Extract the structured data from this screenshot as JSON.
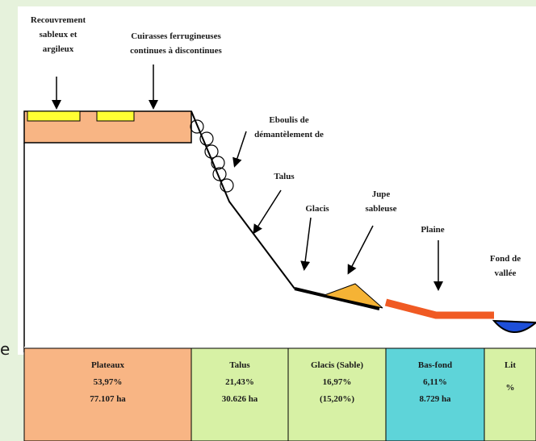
{
  "labels": [
    {
      "lines": [
        "Recouvrement",
        "sableux et",
        "argileux"
      ]
    },
    {
      "lines": [
        "Cuirasses ferrugineuses",
        "continues à discontinues"
      ]
    },
    {
      "lines": [
        "Eboulis de",
        "démantèlement de"
      ]
    },
    {
      "lines": [
        "Talus"
      ]
    },
    {
      "lines": [
        "Glacis"
      ]
    },
    {
      "lines": [
        "Jupe",
        "sableuse"
      ]
    },
    {
      "lines": [
        "Plaine"
      ]
    },
    {
      "lines": [
        "Fond de",
        "vallée"
      ]
    }
  ],
  "side_text": "e",
  "table": {
    "cells": [
      {
        "lines": [
          "Plateaux",
          "53,97%",
          "77.107 ha"
        ]
      },
      {
        "lines": [
          "Talus",
          "21,43%",
          "30.626 ha"
        ]
      },
      {
        "lines": [
          "Glacis   (Sable)",
          "16,97%",
          "(15,20%)"
        ]
      },
      {
        "lines": [
          "Bas-fond",
          "6,11%",
          "8.729 ha"
        ]
      },
      {
        "lines": [
          "Lit",
          "%"
        ]
      }
    ]
  }
}
